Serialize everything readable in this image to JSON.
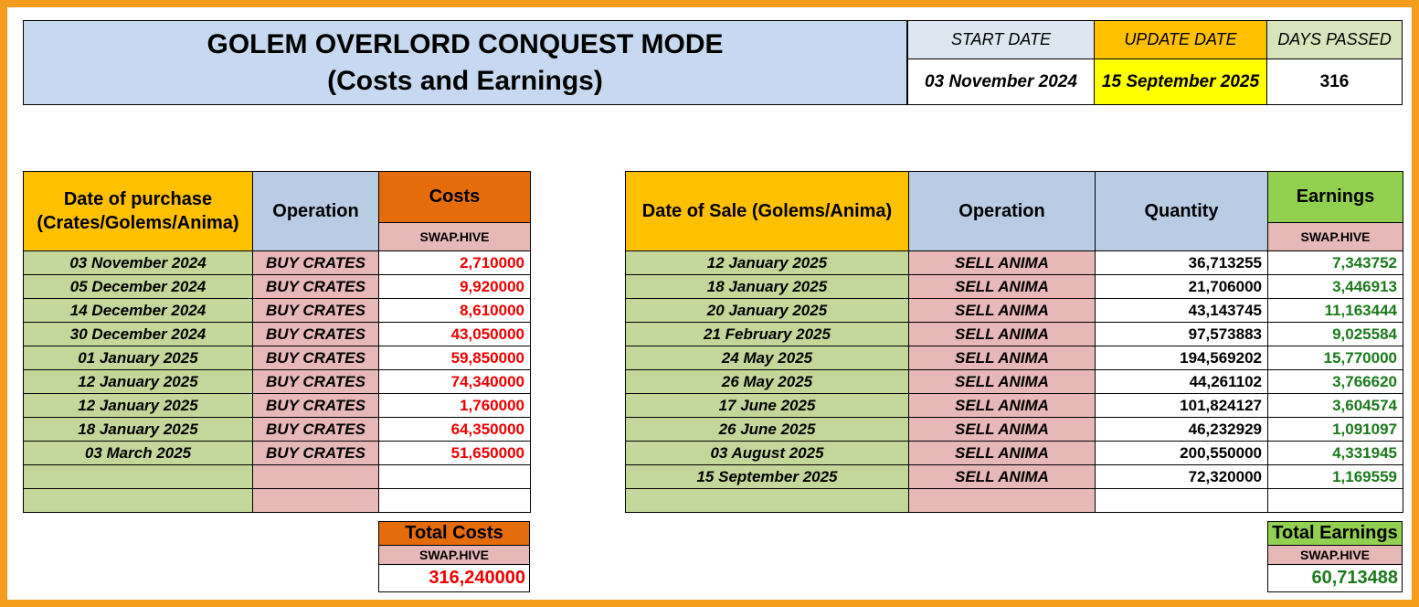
{
  "header": {
    "title_line1": "GOLEM OVERLORD CONQUEST MODE",
    "title_line2": "(Costs and Earnings)",
    "start_date_label": "START DATE",
    "start_date_value": "03 November 2024",
    "update_date_label": "UPDATE DATE",
    "update_date_value": "15 September 2025",
    "days_passed_label": "DAYS PASSED",
    "days_passed_value": "316"
  },
  "colors": {
    "frame": "#f39c1e",
    "title_bg": "#c6d9f0",
    "update_bg": "#ffc000",
    "update_value_bg": "#ffff00",
    "days_bg": "#d8e4bc",
    "date_cell_bg": "#c4d79b",
    "operation_cell_bg": "#e6b8b7",
    "cost_text": "#ee0000",
    "earning_text": "#1a7a1a"
  },
  "costs_table": {
    "headers": {
      "date": "Date of purchase (Crates/Golems/Anima)",
      "operation": "Operation",
      "costs": "Costs",
      "unit": "SWAP.HIVE"
    },
    "rows": [
      {
        "date": "03 November 2024",
        "operation": "BUY CRATES",
        "cost": "2,710000"
      },
      {
        "date": "05 December 2024",
        "operation": "BUY CRATES",
        "cost": "9,920000"
      },
      {
        "date": "14 December 2024",
        "operation": "BUY CRATES",
        "cost": "8,610000"
      },
      {
        "date": "30 December 2024",
        "operation": "BUY CRATES",
        "cost": "43,050000"
      },
      {
        "date": "01 January 2025",
        "operation": "BUY CRATES",
        "cost": "59,850000"
      },
      {
        "date": "12 January 2025",
        "operation": "BUY CRATES",
        "cost": "74,340000"
      },
      {
        "date": "12 January 2025",
        "operation": "BUY CRATES",
        "cost": "1,760000"
      },
      {
        "date": "18 January 2025",
        "operation": "BUY CRATES",
        "cost": "64,350000"
      },
      {
        "date": "03 March 2025",
        "operation": "BUY CRATES",
        "cost": "51,650000"
      },
      {
        "date": "",
        "operation": "",
        "cost": ""
      },
      {
        "date": "",
        "operation": "",
        "cost": ""
      }
    ]
  },
  "earnings_table": {
    "headers": {
      "date": "Date of Sale (Golems/Anima)",
      "operation": "Operation",
      "quantity": "Quantity",
      "earnings": "Earnings",
      "unit": "SWAP.HIVE"
    },
    "rows": [
      {
        "date": "12 January 2025",
        "operation": "SELL ANIMA",
        "quantity": "36,713255",
        "earning": "7,343752"
      },
      {
        "date": "18 January 2025",
        "operation": "SELL ANIMA",
        "quantity": "21,706000",
        "earning": "3,446913"
      },
      {
        "date": "20 January 2025",
        "operation": "SELL ANIMA",
        "quantity": "43,143745",
        "earning": "11,163444"
      },
      {
        "date": "21 February 2025",
        "operation": "SELL ANIMA",
        "quantity": "97,573883",
        "earning": "9,025584"
      },
      {
        "date": "24 May 2025",
        "operation": "SELL ANIMA",
        "quantity": "194,569202",
        "earning": "15,770000"
      },
      {
        "date": "26 May 2025",
        "operation": "SELL ANIMA",
        "quantity": "44,261102",
        "earning": "3,766620"
      },
      {
        "date": "17 June 2025",
        "operation": "SELL ANIMA",
        "quantity": "101,824127",
        "earning": "3,604574"
      },
      {
        "date": "26 June 2025",
        "operation": "SELL ANIMA",
        "quantity": "46,232929",
        "earning": "1,091097"
      },
      {
        "date": "03 August 2025",
        "operation": "SELL ANIMA",
        "quantity": "200,550000",
        "earning": "4,331945"
      },
      {
        "date": "15 September 2025",
        "operation": "SELL ANIMA",
        "quantity": "72,320000",
        "earning": "1,169559"
      },
      {
        "date": "",
        "operation": "",
        "quantity": "",
        "earning": ""
      }
    ]
  },
  "totals": {
    "costs_label": "Total Costs",
    "costs_unit": "SWAP.HIVE",
    "costs_value": "316,240000",
    "earnings_label": "Total Earnings",
    "earnings_unit": "SWAP.HIVE",
    "earnings_value": "60,713488"
  }
}
